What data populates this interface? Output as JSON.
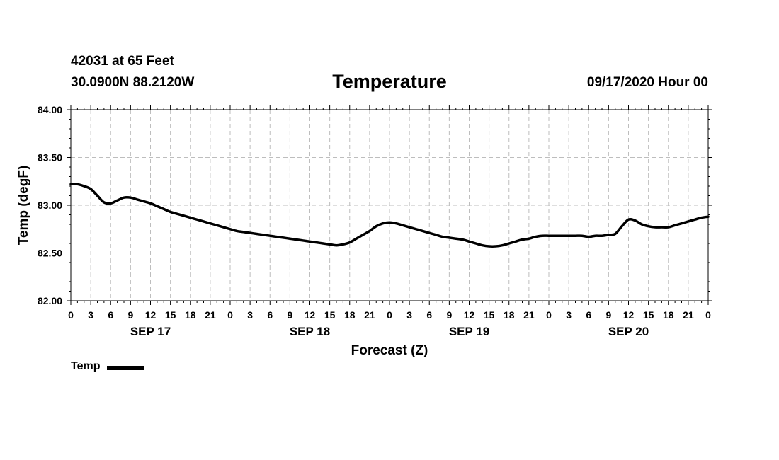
{
  "header": {
    "station": "42031 at 65 Feet",
    "coords": "30.0900N 88.2120W",
    "title": "Temperature",
    "datetime": "09/17/2020 Hour 00"
  },
  "chart_data": {
    "type": "line",
    "title": "Temperature",
    "xlabel": "Forecast (Z)",
    "ylabel": "Temp (degF)",
    "xlim": [
      0,
      96
    ],
    "ylim": [
      82.0,
      84.0
    ],
    "y_major_ticks": [
      "82.00",
      "82.50",
      "83.00",
      "83.50",
      "84.00"
    ],
    "x_tick_step_hours": 3,
    "x_tick_labels": [
      "0",
      "3",
      "6",
      "9",
      "12",
      "15",
      "18",
      "21",
      "0",
      "3",
      "6",
      "9",
      "12",
      "15",
      "18",
      "21",
      "0",
      "3",
      "6",
      "9",
      "12",
      "15",
      "18",
      "21",
      "0",
      "3",
      "6",
      "9",
      "12",
      "15",
      "18",
      "21",
      "0"
    ],
    "day_labels": [
      {
        "label": "SEP 17",
        "hour": 12
      },
      {
        "label": "SEP 18",
        "hour": 36
      },
      {
        "label": "SEP 19",
        "hour": 60
      },
      {
        "label": "SEP 20",
        "hour": 84
      }
    ],
    "grid": true,
    "legend_position": "bottom-left",
    "series": [
      {
        "name": "Temp",
        "color": "#000000",
        "x": [
          0,
          1,
          2,
          3,
          4,
          5,
          6,
          7,
          8,
          9,
          10,
          11,
          12,
          13,
          14,
          15,
          16,
          17,
          18,
          19,
          20,
          21,
          22,
          23,
          24,
          25,
          26,
          27,
          28,
          29,
          30,
          31,
          32,
          33,
          34,
          35,
          36,
          37,
          38,
          39,
          40,
          41,
          42,
          43,
          44,
          45,
          46,
          47,
          48,
          49,
          50,
          51,
          52,
          53,
          54,
          55,
          56,
          57,
          58,
          59,
          60,
          61,
          62,
          63,
          64,
          65,
          66,
          67,
          68,
          69,
          70,
          71,
          72,
          73,
          74,
          75,
          76,
          77,
          78,
          79,
          80,
          81,
          82,
          83,
          84,
          85,
          86,
          87,
          88,
          89,
          90,
          91,
          92,
          93,
          94,
          95,
          96
        ],
        "values": [
          83.22,
          83.22,
          83.2,
          83.17,
          83.1,
          83.03,
          83.02,
          83.05,
          83.08,
          83.08,
          83.06,
          83.04,
          83.02,
          82.99,
          82.96,
          82.93,
          82.91,
          82.89,
          82.87,
          82.85,
          82.83,
          82.81,
          82.79,
          82.77,
          82.75,
          82.73,
          82.72,
          82.71,
          82.7,
          82.69,
          82.68,
          82.67,
          82.66,
          82.65,
          82.64,
          82.63,
          82.62,
          82.61,
          82.6,
          82.59,
          82.58,
          82.59,
          82.61,
          82.65,
          82.69,
          82.73,
          82.78,
          82.81,
          82.82,
          82.81,
          82.79,
          82.77,
          82.75,
          82.73,
          82.71,
          82.69,
          82.67,
          82.66,
          82.65,
          82.64,
          82.62,
          82.6,
          82.58,
          82.57,
          82.57,
          82.58,
          82.6,
          82.62,
          82.64,
          82.65,
          82.67,
          82.68,
          82.68,
          82.68,
          82.68,
          82.68,
          82.68,
          82.68,
          82.67,
          82.68,
          82.68,
          82.69,
          82.7,
          82.78,
          82.85,
          82.84,
          82.8,
          82.78,
          82.77,
          82.77,
          82.77,
          82.79,
          82.81,
          82.83,
          82.85,
          82.87,
          82.88
        ]
      }
    ]
  }
}
